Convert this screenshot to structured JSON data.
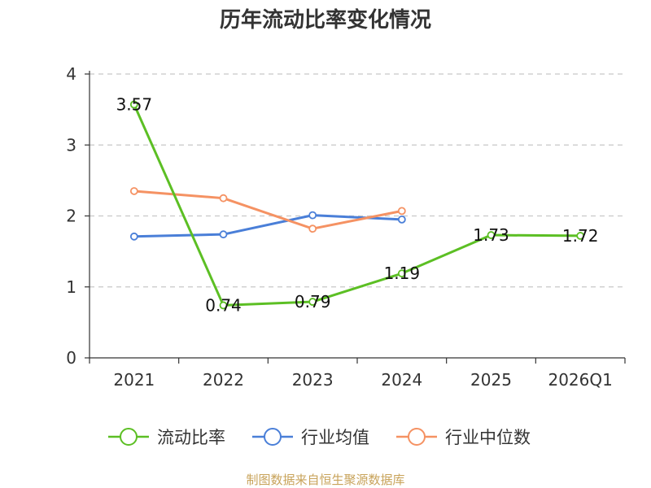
{
  "chart_data": {
    "type": "line",
    "title": "历年流动比率变化情况",
    "categories": [
      "2021",
      "2022",
      "2023",
      "2024",
      "2025",
      "2026Q1"
    ],
    "ylim": [
      0,
      4
    ],
    "yticks": [
      0,
      1,
      2,
      3,
      4
    ],
    "xlabel": "",
    "ylabel": "",
    "grid": true,
    "legend_position": "bottom",
    "series": [
      {
        "name": "流动比率",
        "color": "#5cbf24",
        "values": [
          3.57,
          0.74,
          0.79,
          1.19,
          1.73,
          1.72
        ],
        "labels": [
          "3.57",
          "0.74",
          "0.79",
          "1.19",
          "1.73",
          "1.72"
        ]
      },
      {
        "name": "行业均值",
        "color": "#4a7fd8",
        "values": [
          1.71,
          1.74,
          2.01,
          1.95,
          null,
          null
        ]
      },
      {
        "name": "行业中位数",
        "color": "#f59263",
        "values": [
          2.35,
          2.25,
          1.82,
          2.07,
          null,
          null
        ]
      }
    ],
    "source": "制图数据来自恒生聚源数据库"
  }
}
